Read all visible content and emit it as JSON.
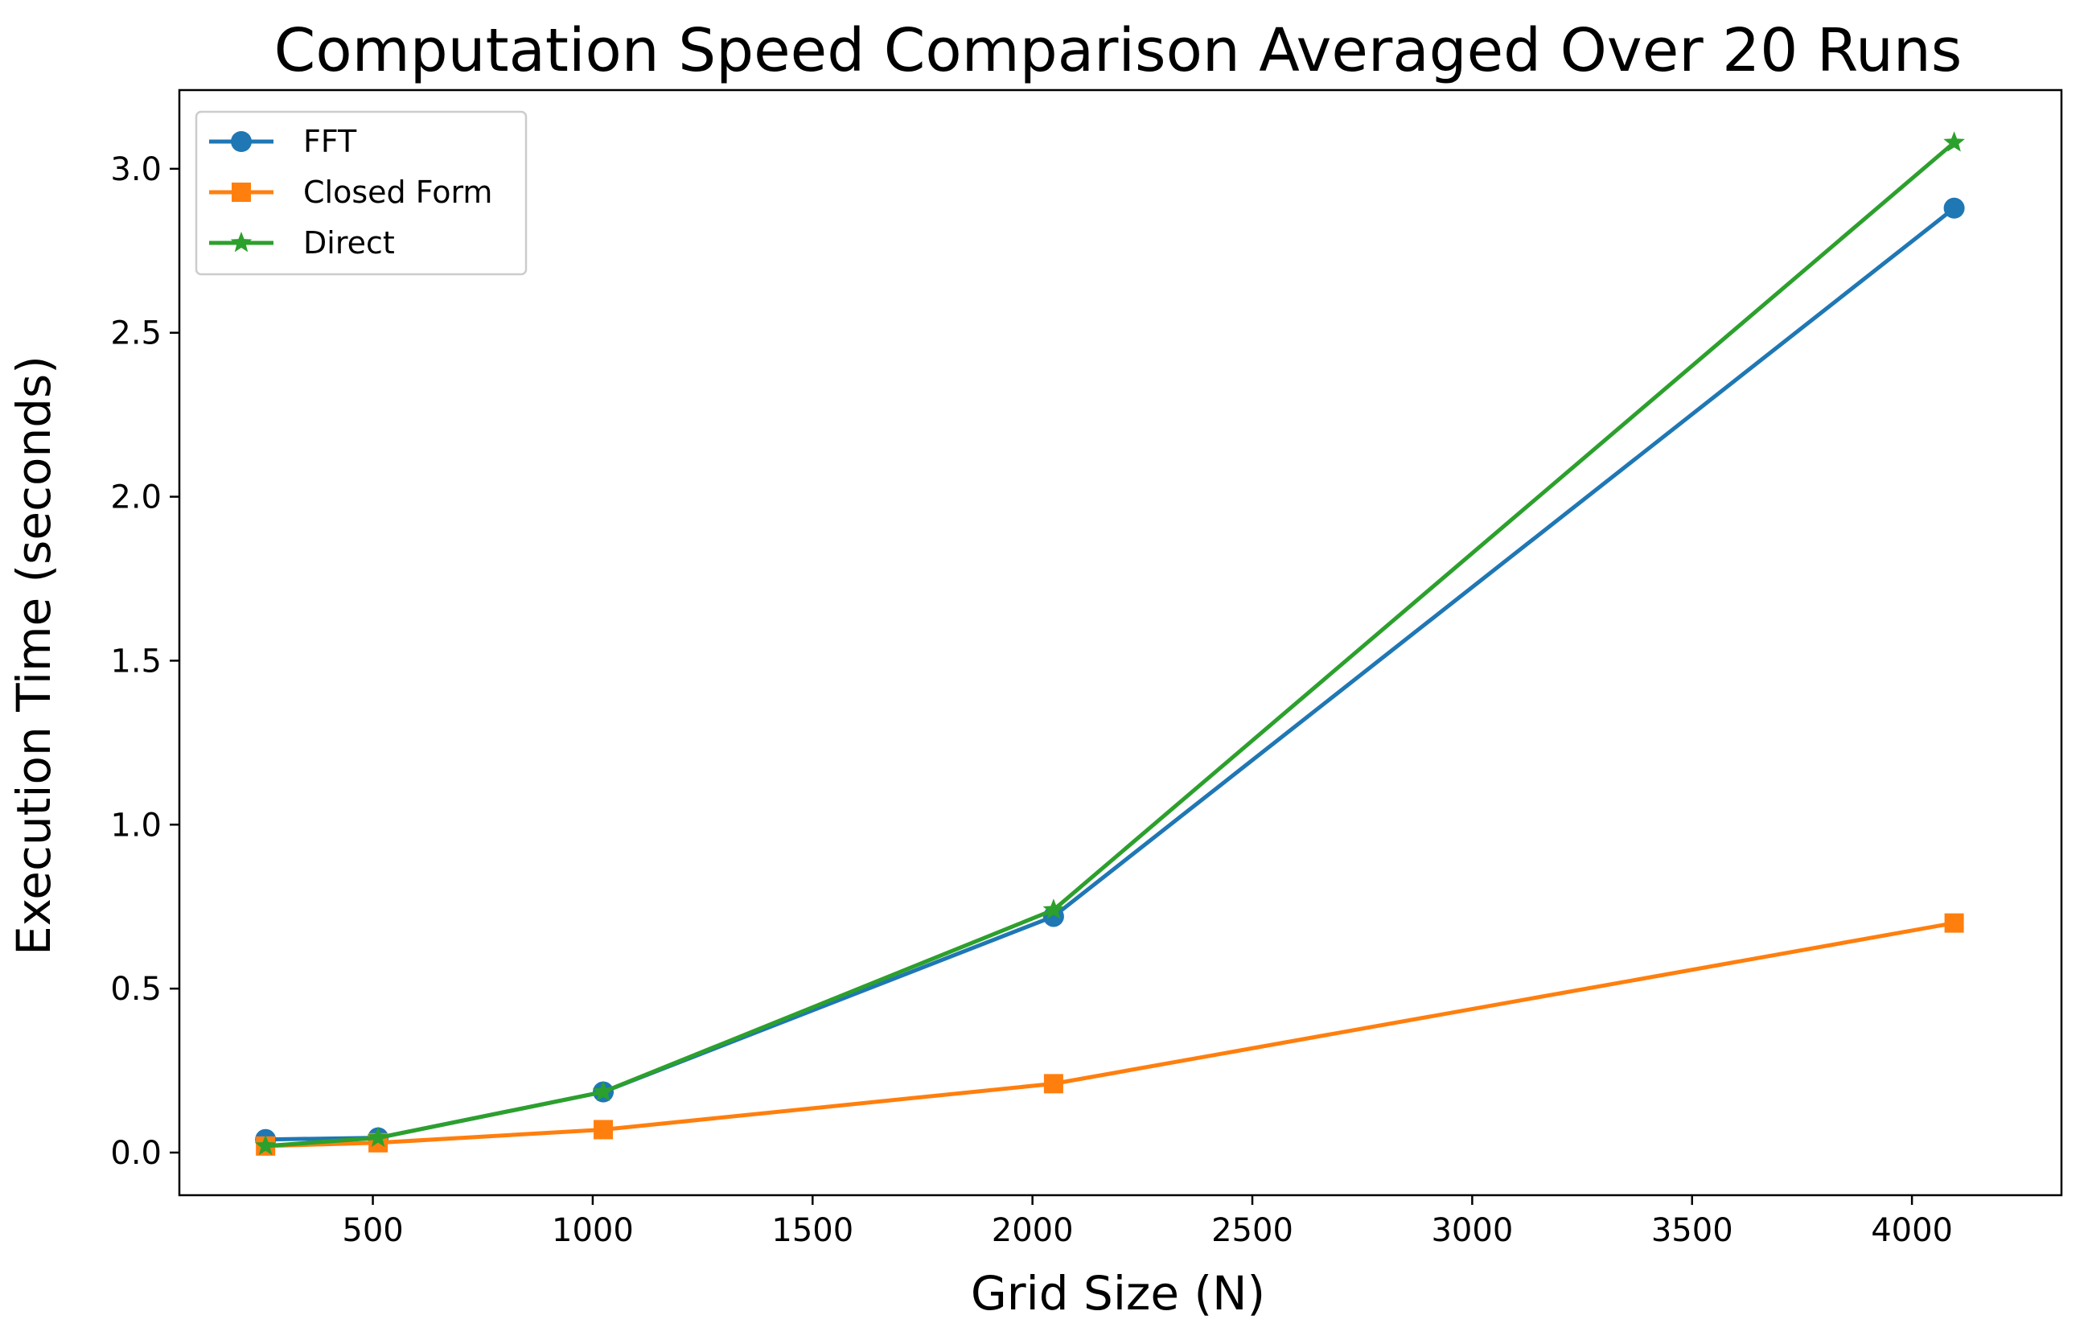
{
  "chart_data": {
    "type": "line",
    "title": "Computation Speed Comparison Averaged Over 20 Runs",
    "xlabel": "Grid Size (N)",
    "ylabel": "Execution Time (seconds)",
    "xlim": [
      60,
      4340
    ],
    "ylim": [
      -0.13,
      3.24
    ],
    "x": [
      256,
      512,
      1024,
      2048,
      4096
    ],
    "x_ticks": [
      500,
      1000,
      1500,
      2000,
      2500,
      3000,
      3500,
      4000
    ],
    "x_tick_labels": [
      "500",
      "1000",
      "1500",
      "2000",
      "2500",
      "3000",
      "3500",
      "4000"
    ],
    "y_ticks": [
      0.0,
      0.5,
      1.0,
      1.5,
      2.0,
      2.5,
      3.0
    ],
    "y_tick_labels": [
      "0.0",
      "0.5",
      "1.0",
      "1.5",
      "2.0",
      "2.5",
      "3.0"
    ],
    "grid": false,
    "legend_position": "top-left",
    "series": [
      {
        "name": "FFT",
        "color": "#1f77b4",
        "marker": "circle",
        "values": [
          0.04,
          0.045,
          0.185,
          0.72,
          2.88
        ]
      },
      {
        "name": "Closed Form",
        "color": "#ff7f0e",
        "marker": "square",
        "values": [
          0.02,
          0.03,
          0.07,
          0.21,
          0.7
        ]
      },
      {
        "name": "Direct",
        "color": "#2ca02c",
        "marker": "star",
        "values": [
          0.02,
          0.045,
          0.185,
          0.74,
          3.08
        ]
      }
    ]
  }
}
